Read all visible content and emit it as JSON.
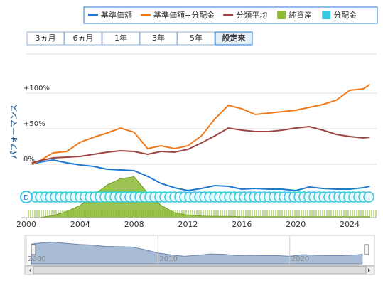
{
  "chart_data": {
    "type": "line",
    "range_buttons": [
      "3ヵ月",
      "6ヵ月",
      "1年",
      "3年",
      "5年",
      "設定来"
    ],
    "selected_range": 5,
    "y_label": "パフォーマンス",
    "flag_label": "D",
    "xlim": [
      2000,
      2026
    ],
    "xticks": [
      2000,
      2004,
      2008,
      2012,
      2016,
      2020,
      2024
    ],
    "ylim": [
      -75,
      155
    ],
    "yticks": [
      {
        "value": 0,
        "label": "0%"
      },
      {
        "value": 50,
        "label": "+50%"
      },
      {
        "value": 100,
        "label": "+100%"
      }
    ],
    "y2lim": [
      0,
      400
    ],
    "grid": true,
    "x": [
      2000.4,
      2001,
      2002,
      2003,
      2004,
      2005,
      2006,
      2007,
      2008,
      2009,
      2010,
      2011,
      2012,
      2013,
      2014,
      2015,
      2016,
      2017,
      2018,
      2019,
      2020,
      2021,
      2022,
      2023,
      2024,
      2025,
      2025.5
    ],
    "series": [
      {
        "name": "基準価額",
        "color": "#1f78d1",
        "kind": "line",
        "values": [
          0,
          3,
          6,
          2,
          -1,
          -3,
          -7,
          -8,
          -9,
          -17,
          -27,
          -33,
          -37,
          -34,
          -30,
          -31,
          -35,
          -34,
          -35,
          -35,
          -37,
          -32,
          -34,
          -35,
          -35,
          -33,
          -31
        ]
      },
      {
        "name": "基準価額+分配金",
        "color": "#f07a1a",
        "kind": "line",
        "values": [
          0,
          5,
          16,
          18,
          31,
          38,
          44,
          51,
          45,
          22,
          26,
          22,
          26,
          40,
          64,
          83,
          78,
          70,
          72,
          74,
          76,
          80,
          84,
          90,
          104,
          106,
          112
        ]
      },
      {
        "name": "分類平均",
        "color": "#9e4444",
        "kind": "line",
        "values": [
          2,
          5,
          9,
          10,
          11,
          14,
          17,
          19,
          18,
          14,
          18,
          17,
          21,
          30,
          40,
          51,
          48,
          46,
          46,
          48,
          51,
          53,
          48,
          42,
          39,
          37,
          38
        ]
      },
      {
        "name": "純資産",
        "color": "#8cba34",
        "kind": "area",
        "axis": "y2",
        "values": [
          0,
          0,
          5,
          15,
          30,
          55,
          80,
          95,
          100,
          60,
          30,
          12,
          6,
          4,
          3,
          3,
          2,
          2,
          2,
          2,
          2,
          2,
          2,
          2,
          2,
          2,
          2
        ]
      },
      {
        "name": "分配金",
        "color": "#35c8e0",
        "kind": "flags"
      }
    ],
    "navigator": {
      "xlim": [
        2000,
        2026
      ],
      "ylim": [
        -60,
        20
      ],
      "xticks": [
        2000,
        2010,
        2020
      ]
    }
  }
}
